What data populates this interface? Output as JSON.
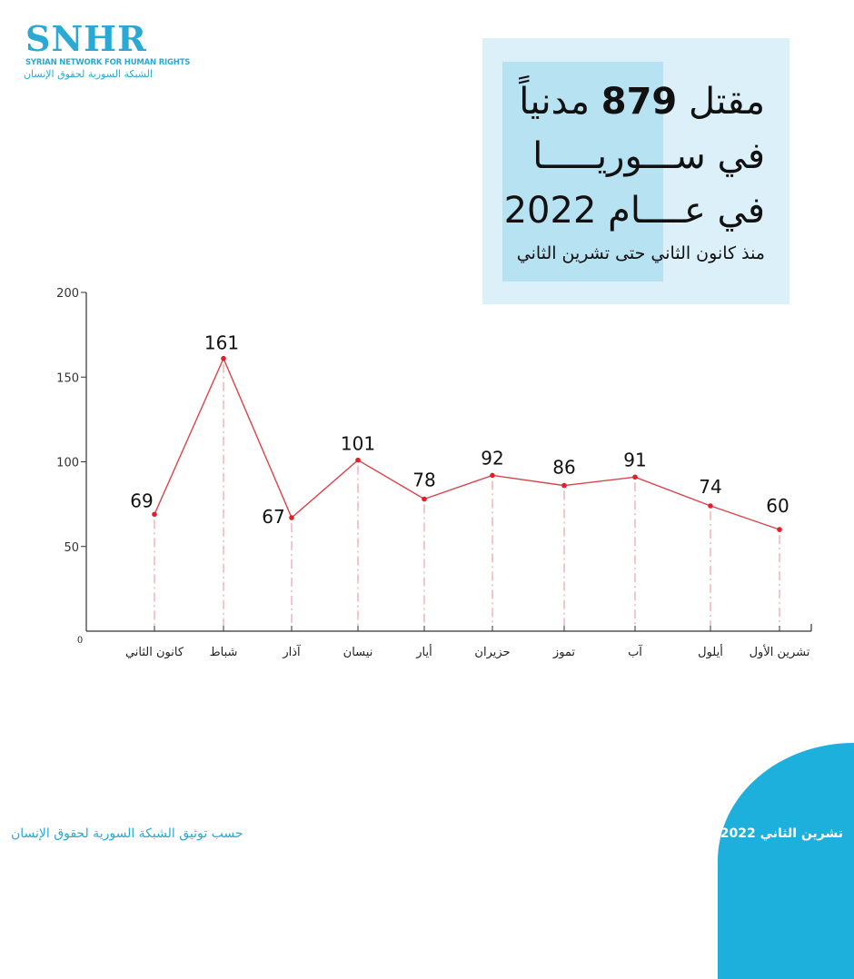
{
  "logo": {
    "mark": "SNHR",
    "english": "SYRIAN NETWORK FOR HUMAN RIGHTS",
    "arabic": "الشبكة السورية لحقوق الإنسان"
  },
  "headline": {
    "line1_prefix": "مقتل",
    "line1_number": "879",
    "line1_suffix": "مدنياً",
    "line2": "في ســـوريـــــا",
    "line3": "في عــــام 2022",
    "subtitle": "منذ كانون الثاني حتى تشرين الثاني"
  },
  "colors": {
    "line": "#d9444c",
    "point": "#e0202a",
    "accent": "#1eb0dd",
    "box": "#dbf0f8",
    "box_accent": "#b6e2f2"
  },
  "chart_data": {
    "type": "line",
    "title": "مقتل 879 مدنياً في سوريا في عام 2022",
    "xlabel": "",
    "ylabel": "",
    "categories": [
      "كانون الثاني",
      "شباط",
      "آذار",
      "نيسان",
      "أيار",
      "حزيران",
      "تموز",
      "آب",
      "أيلول",
      "تشرين الأول"
    ],
    "series": [
      {
        "name": "civilian deaths",
        "values": [
          69,
          161,
          67,
          101,
          78,
          92,
          86,
          91,
          74,
          60
        ]
      }
    ],
    "ylim": [
      0,
      200
    ],
    "yticks": [
      0,
      50,
      100,
      150,
      200
    ],
    "grid": false,
    "data_labels": true,
    "legend": "none"
  },
  "footer": {
    "source": "حسب توثيق الشبكة السورية لحقوق الإنسان",
    "date": "تشرين الثاني 2022"
  }
}
